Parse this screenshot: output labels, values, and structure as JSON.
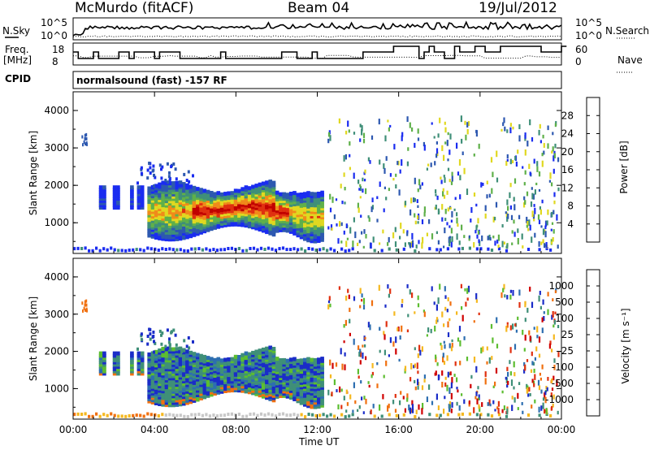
{
  "header": {
    "station": "McMurdo (fitACF)",
    "beam": "Beam 04",
    "date": "19/Jul/2012"
  },
  "status_panels": {
    "nsky_label": "N.Sky",
    "nsearch_label": "N.Search",
    "nsky_ticks": [
      "10^5",
      "10^0"
    ],
    "nsearch_ticks": [
      "10^5",
      "10^0"
    ],
    "freq_label_line1": "Freq.",
    "freq_label_line2": "[MHz]",
    "freq_ticks": [
      "18",
      "8"
    ],
    "nave_label": "Nave",
    "nave_ticks": [
      "60",
      "0"
    ],
    "cpid_label": "CPID",
    "cpid_text": "normalsound (fast) -157 RF"
  },
  "chart_data": [
    {
      "type": "heatmap",
      "name": "power",
      "ylabel": "Slant Range [km]",
      "xlabel": "",
      "xlim": [
        "00:00",
        "24:00"
      ],
      "ylim": [
        180,
        4500
      ],
      "yticks": [
        1000,
        2000,
        3000,
        4000
      ],
      "colorbar": {
        "label": "Power [dB]",
        "ticks": [
          4,
          8,
          12,
          16,
          20,
          24,
          28
        ],
        "colors": [
          "#1a2cf0",
          "#2d58b0",
          "#3f8f78",
          "#5fb04a",
          "#e0d820",
          "#f08a1a",
          "#e03010",
          "#c00000"
        ]
      }
    },
    {
      "type": "heatmap",
      "name": "velocity",
      "ylabel": "Slant Range [km]",
      "xlabel": "Time UT",
      "xlim": [
        "00:00",
        "24:00"
      ],
      "ylim": [
        180,
        4500
      ],
      "yticks": [
        1000,
        2000,
        3000,
        4000
      ],
      "xticks": [
        "00:00",
        "04:00",
        "08:00",
        "12:00",
        "16:00",
        "20:00",
        "00:00"
      ],
      "colorbar": {
        "label": "Velocity [m s⁻¹]",
        "ticks": [
          "1000",
          "500",
          "100",
          "25",
          "-25",
          "-100",
          "-500",
          "-1000"
        ],
        "colors": [
          "#1a2cc8",
          "#2d6eb0",
          "#3f8f78",
          "#5cbd30",
          "#c8c8c8",
          "#f5b820",
          "#f07010",
          "#e03010",
          "#d00000"
        ]
      }
    }
  ]
}
